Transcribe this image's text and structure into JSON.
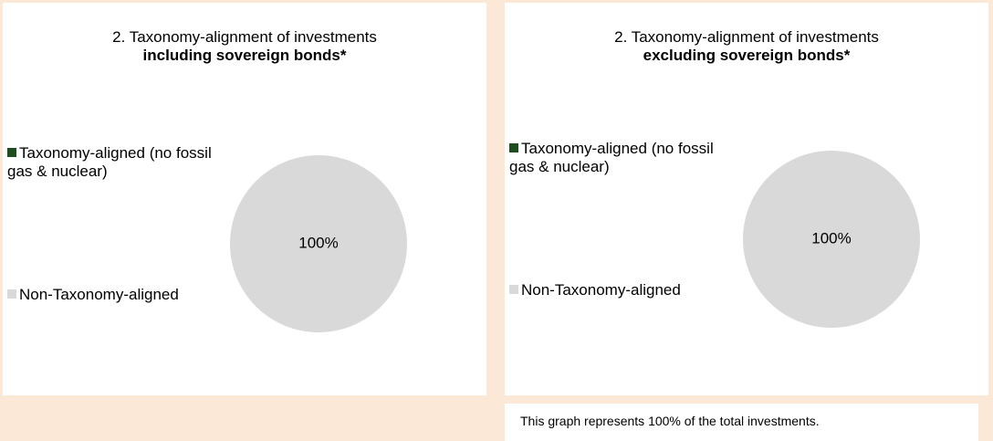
{
  "chart_data": [
    {
      "type": "pie",
      "title": "2. Taxonomy-alignment of investments",
      "subtitle": "including sovereign bonds*",
      "categories": [
        "Taxonomy-aligned (no fossil gas & nuclear)",
        "Non-Taxonomy-aligned"
      ],
      "values": [
        0,
        100
      ],
      "value_labels": [
        null,
        "100%"
      ],
      "colors": [
        "#1e4d1e",
        "#d9d9d9"
      ]
    },
    {
      "type": "pie",
      "title": "2. Taxonomy-alignment of investments",
      "subtitle": "excluding sovereign bonds*",
      "categories": [
        "Taxonomy-aligned (no fossil gas & nuclear)",
        "Non-Taxonomy-aligned"
      ],
      "values": [
        0,
        100
      ],
      "value_labels": [
        null,
        "100%"
      ],
      "colors": [
        "#1e4d1e",
        "#d9d9d9"
      ]
    }
  ],
  "footnote": "This graph represents 100% of the total investments."
}
